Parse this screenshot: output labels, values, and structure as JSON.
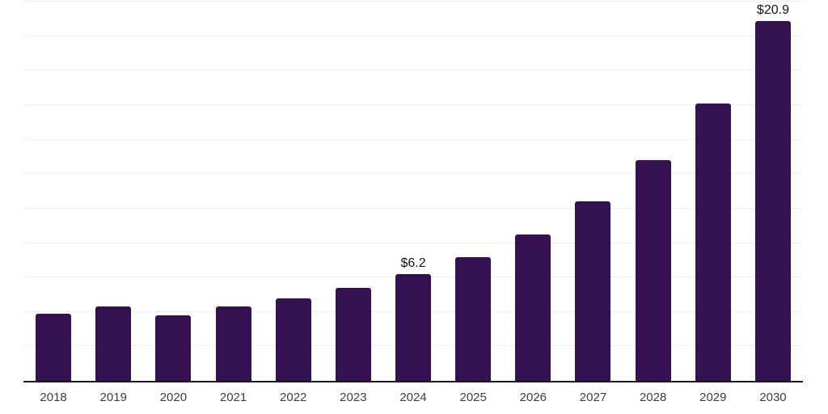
{
  "chart_data": {
    "type": "bar",
    "title": "",
    "xlabel": "",
    "ylabel": "",
    "categories": [
      "2018",
      "2019",
      "2020",
      "2021",
      "2022",
      "2023",
      "2024",
      "2025",
      "2026",
      "2027",
      "2028",
      "2029",
      "2030"
    ],
    "values": [
      3.9,
      4.3,
      3.8,
      4.3,
      4.8,
      5.4,
      6.2,
      7.2,
      8.5,
      10.4,
      12.8,
      16.1,
      20.9
    ],
    "data_labels": [
      "",
      "",
      "",
      "",
      "",
      "",
      "$6.2",
      "",
      "",
      "",
      "",
      "",
      "$20.9"
    ],
    "ylim": [
      0,
      22
    ],
    "gridline_step": 2,
    "grid": true,
    "y_tick_labels_visible": false,
    "legend": false
  },
  "colors": {
    "background": "#ffffff",
    "bar": "#361152",
    "gridline": "#ededed",
    "axis": "#1a1a1a",
    "tick_label": "#3d3d3d",
    "data_label": "#141414"
  }
}
